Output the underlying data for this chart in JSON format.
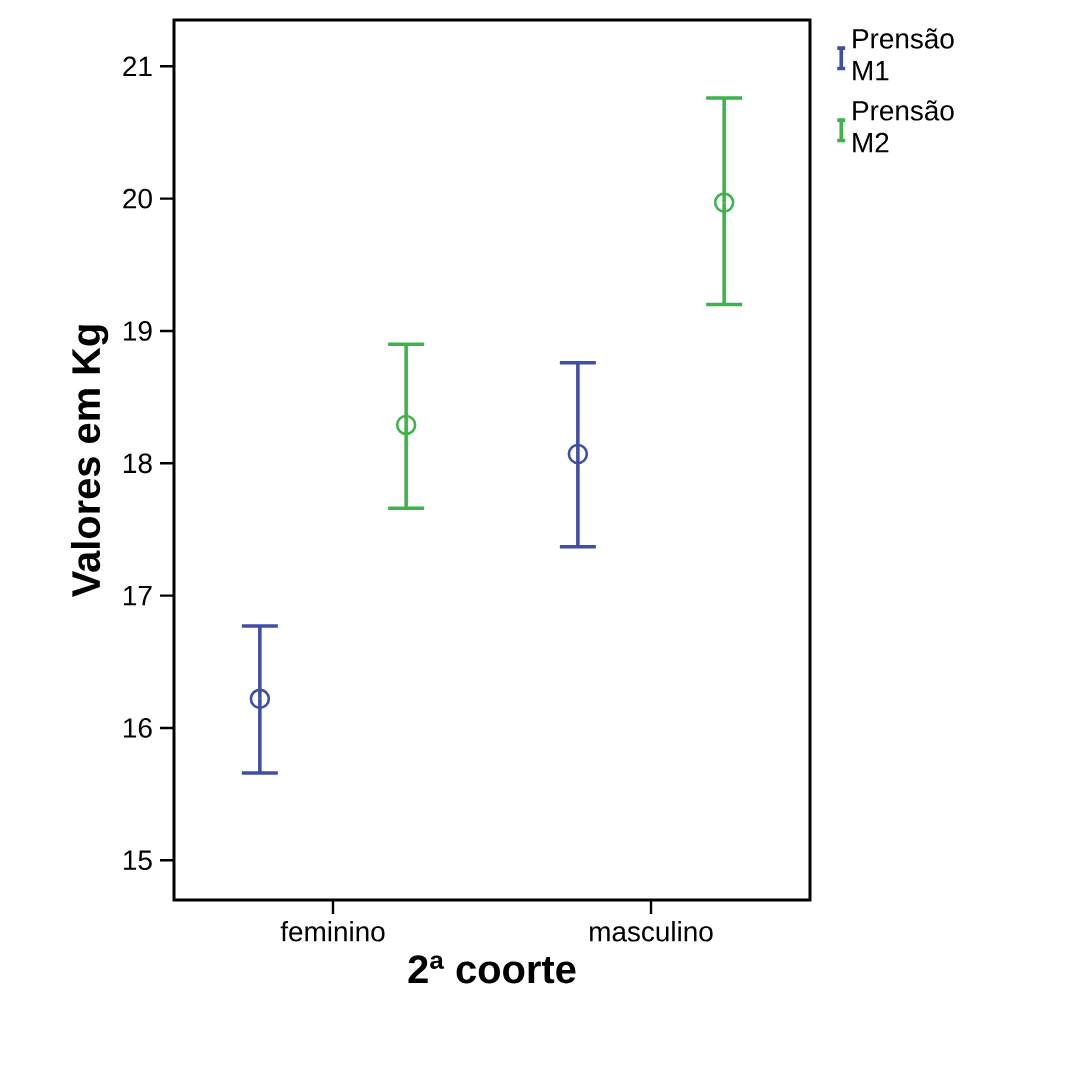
{
  "chart_data": {
    "type": "scatter",
    "xlabel": "2ª coorte",
    "ylabel": "Valores em Kg",
    "categories": [
      "feminino",
      "masculino"
    ],
    "ylim": [
      14.7,
      21.35
    ],
    "yticks": [
      15,
      16,
      17,
      18,
      19,
      20,
      21
    ],
    "marker": "circle",
    "legend": "right",
    "series": [
      {
        "name": "Prensão M1",
        "color": "#3f4fa8",
        "values": [
          16.22,
          18.07
        ],
        "errors": [
          [
            15.66,
            16.77
          ],
          [
            17.37,
            18.76
          ]
        ]
      },
      {
        "name": "Prensão M2",
        "color": "#3cb44a",
        "values": [
          18.29,
          19.97
        ],
        "errors": [
          [
            17.66,
            18.9
          ],
          [
            19.2,
            20.76
          ]
        ]
      }
    ]
  }
}
